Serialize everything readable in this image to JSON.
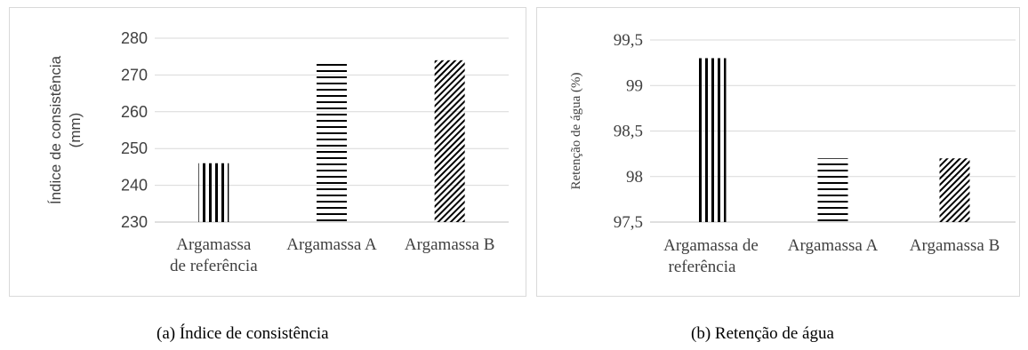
{
  "chart_data": [
    {
      "type": "bar",
      "categories": [
        "Argamassa de referência",
        "Argamassa A",
        "Argamassa B"
      ],
      "category_lines": [
        [
          "Argamassa",
          "de referência"
        ],
        [
          "Argamassa A"
        ],
        [
          "Argamassa B"
        ]
      ],
      "values": [
        246,
        273,
        274
      ],
      "patterns": [
        "vertical-lines",
        "horizontal-lines",
        "diagonal-hatch"
      ],
      "ylabel_lines": [
        "Índice de consistência",
        "(mm)"
      ],
      "ylim": [
        230,
        280
      ],
      "yticks": [
        230,
        240,
        250,
        260,
        270,
        280
      ],
      "ytick_labels": [
        "230",
        "240",
        "250",
        "260",
        "270",
        "280"
      ],
      "grid": true,
      "colors": {
        "bar": "#000000",
        "grid": "#d9d9d9",
        "axis": "#bfbfbf"
      }
    },
    {
      "type": "bar",
      "categories": [
        "Argamassa de referência",
        "Argamassa A",
        "Argamassa B"
      ],
      "category_lines": [
        [
          "Argamassa de",
          "referência"
        ],
        [
          "Argamassa A"
        ],
        [
          "Argamassa B"
        ]
      ],
      "values": [
        99.3,
        98.2,
        98.2
      ],
      "patterns": [
        "vertical-lines",
        "horizontal-lines",
        "diagonal-hatch"
      ],
      "ylabel_lines": [
        "Retenção de água (%)"
      ],
      "ylim": [
        97.5,
        99.5
      ],
      "yticks": [
        97.5,
        98,
        98.5,
        99,
        99.5
      ],
      "ytick_labels": [
        "97,5",
        "98",
        "98,5",
        "99",
        "99,5"
      ],
      "grid": true,
      "colors": {
        "bar": "#000000",
        "grid": "#d9d9d9",
        "axis": "#bfbfbf"
      }
    }
  ],
  "captions": {
    "a": "(a) Índice de consistência",
    "b": "(b) Retenção de água"
  }
}
